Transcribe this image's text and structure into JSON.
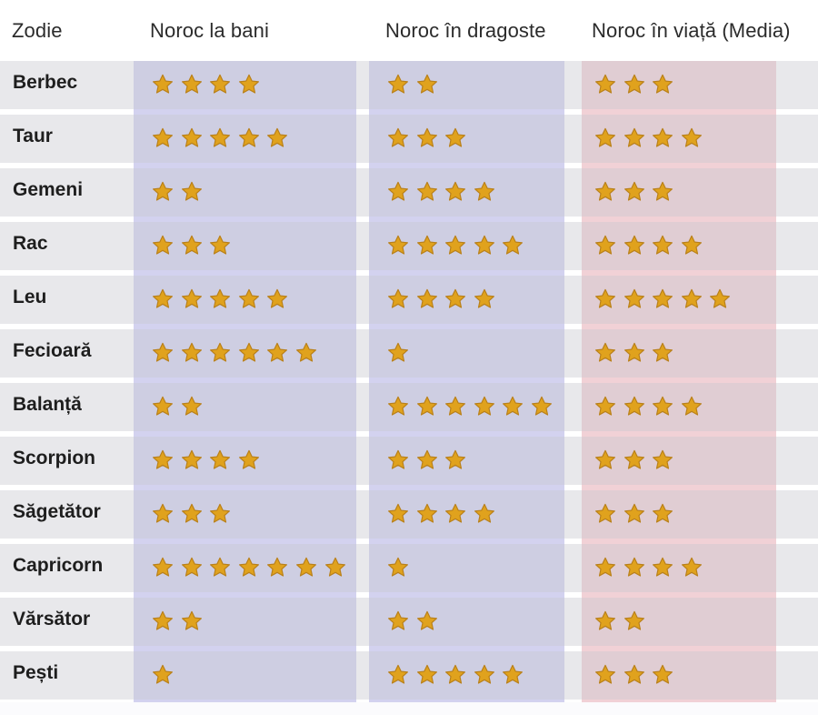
{
  "header": {
    "sign": "Zodie",
    "money": "Noroc la bani",
    "love": "Noroc în dragoste",
    "life": "Noroc în viață (Media)"
  },
  "colors": {
    "money_col": "#d3d2ef",
    "love_col": "#d3d2ef",
    "life_col": "#f1d1d6",
    "star": "#e0a21d"
  },
  "icon": "star-icon",
  "rows": [
    {
      "sign": "Berbec",
      "money": 4,
      "love": 2,
      "life": 3
    },
    {
      "sign": "Taur",
      "money": 5,
      "love": 3,
      "life": 4
    },
    {
      "sign": "Gemeni",
      "money": 2,
      "love": 4,
      "life": 3
    },
    {
      "sign": "Rac",
      "money": 3,
      "love": 5,
      "life": 4
    },
    {
      "sign": "Leu",
      "money": 5,
      "love": 4,
      "life": 5
    },
    {
      "sign": "Fecioară",
      "money": 6,
      "love": 1,
      "life": 3
    },
    {
      "sign": "Balanță",
      "money": 2,
      "love": 6,
      "life": 4
    },
    {
      "sign": "Scorpion",
      "money": 4,
      "love": 3,
      "life": 3
    },
    {
      "sign": "Săgetător",
      "money": 3,
      "love": 4,
      "life": 3
    },
    {
      "sign": "Capricorn",
      "money": 7,
      "love": 1,
      "life": 4
    },
    {
      "sign": "Vărsător",
      "money": 2,
      "love": 2,
      "life": 2
    },
    {
      "sign": "Pești",
      "money": 1,
      "love": 5,
      "life": 3
    }
  ]
}
